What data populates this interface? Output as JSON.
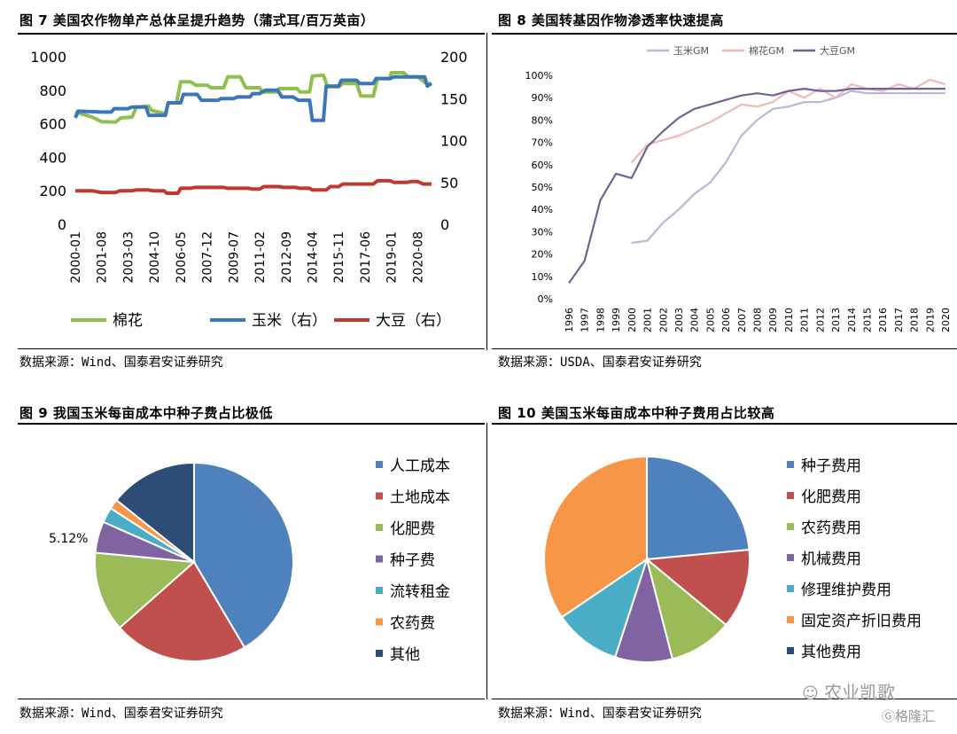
{
  "panels": {
    "fig7": {
      "title": "图 7 美国农作物单产总体呈提升趋势（蒲式耳/百万英亩）",
      "source": "数据来源：Wind、国泰君安证券研究"
    },
    "fig8": {
      "title": "图 8 美国转基因作物渗透率快速提高",
      "source": "数据来源：USDA、国泰君安证券研究"
    },
    "fig9": {
      "title": "图 9 我国玉米每亩成本中种子费占比极低",
      "source": "数据来源：Wind、国泰君安证券研究"
    },
    "fig10": {
      "title": "图 10 美国玉米每亩成本中种子费用占比较高",
      "source": "数据来源：Wind、国泰君安证券研究"
    }
  },
  "watermark": {
    "text1": "农业凯歌",
    "text2": "格隆汇"
  },
  "colors": {
    "green": "#8fbf4d",
    "blue": "#3d75bb",
    "red": "#c0392f",
    "gm_corn": "#b7b7d6",
    "gm_cotton": "#f2b8b8",
    "gm_soy": "#6e6494"
  },
  "chart_data": [
    {
      "type": "line",
      "x_ticks": [
        "2000-01",
        "2001-08",
        "2003-03",
        "2004-10",
        "2006-05",
        "2007-12",
        "2009-07",
        "2011-02",
        "2012-09",
        "2014-04",
        "2015-11",
        "2017-06",
        "2019-01",
        "2020-08"
      ],
      "x_range": [
        "2000-01",
        "2021-06"
      ],
      "y_left": {
        "ticks": [
          0,
          200,
          400,
          600,
          800,
          1000
        ],
        "lim": [
          0,
          1000
        ]
      },
      "y_right": {
        "ticks": [
          0,
          50,
          100,
          150,
          200
        ],
        "lim": [
          0,
          200
        ]
      },
      "legend_position": "bottom",
      "series": [
        {
          "name": "棉花",
          "axis": "left",
          "color": "#8fbf4d",
          "width": 4,
          "points": [
            [
              "2000-01",
              670
            ],
            [
              "2001-01",
              640
            ],
            [
              "2001-08",
              612
            ],
            [
              "2002-06",
              610
            ],
            [
              "2002-10",
              635
            ],
            [
              "2003-06",
              640
            ],
            [
              "2003-09",
              700
            ],
            [
              "2004-06",
              705
            ],
            [
              "2004-08",
              680
            ],
            [
              "2005-06",
              660
            ],
            [
              "2005-08",
              725
            ],
            [
              "2006-02",
              725
            ],
            [
              "2006-05",
              850
            ],
            [
              "2006-12",
              850
            ],
            [
              "2007-04",
              830
            ],
            [
              "2007-12",
              830
            ],
            [
              "2008-03",
              815
            ],
            [
              "2008-12",
              815
            ],
            [
              "2009-03",
              880
            ],
            [
              "2009-12",
              880
            ],
            [
              "2010-04",
              815
            ],
            [
              "2011-02",
              815
            ],
            [
              "2011-04",
              790
            ],
            [
              "2012-02",
              790
            ],
            [
              "2012-04",
              810
            ],
            [
              "2013-05",
              810
            ],
            [
              "2013-07",
              790
            ],
            [
              "2014-02",
              790
            ],
            [
              "2014-04",
              885
            ],
            [
              "2014-12",
              890
            ],
            [
              "2015-03",
              820
            ],
            [
              "2015-11",
              820
            ],
            [
              "2016-02",
              840
            ],
            [
              "2016-12",
              840
            ],
            [
              "2017-03",
              765
            ],
            [
              "2017-12",
              765
            ],
            [
              "2018-03",
              870
            ],
            [
              "2018-12",
              870
            ],
            [
              "2019-01",
              905
            ],
            [
              "2019-10",
              905
            ],
            [
              "2020-01",
              880
            ],
            [
              "2020-08",
              880
            ],
            [
              "2020-12",
              855
            ],
            [
              "2021-03",
              835
            ],
            [
              "2021-06",
              840
            ]
          ]
        },
        {
          "name": "玉米（右）",
          "axis": "right",
          "color": "#3d75bb",
          "width": 4,
          "points": [
            [
              "2000-01",
              127
            ],
            [
              "2000-03",
              135
            ],
            [
              "2001-08",
              134
            ],
            [
              "2002-03",
              134
            ],
            [
              "2002-05",
              138
            ],
            [
              "2003-03",
              138
            ],
            [
              "2003-06",
              140
            ],
            [
              "2004-04",
              140
            ],
            [
              "2004-06",
              130
            ],
            [
              "2005-06",
              130
            ],
            [
              "2005-08",
              145
            ],
            [
              "2006-05",
              145
            ],
            [
              "2006-07",
              155
            ],
            [
              "2007-05",
              155
            ],
            [
              "2007-08",
              148
            ],
            [
              "2008-08",
              148
            ],
            [
              "2008-10",
              150
            ],
            [
              "2009-07",
              150
            ],
            [
              "2009-10",
              152
            ],
            [
              "2010-07",
              152
            ],
            [
              "2010-09",
              156
            ],
            [
              "2011-02",
              156
            ],
            [
              "2011-06",
              160
            ],
            [
              "2012-03",
              160
            ],
            [
              "2012-06",
              152
            ],
            [
              "2013-02",
              152
            ],
            [
              "2013-06",
              148
            ],
            [
              "2014-02",
              148
            ],
            [
              "2014-04",
              124
            ],
            [
              "2014-12",
              124
            ],
            [
              "2015-02",
              165
            ],
            [
              "2015-11",
              165
            ],
            [
              "2016-01",
              172
            ],
            [
              "2016-12",
              172
            ],
            [
              "2017-02",
              168
            ],
            [
              "2017-12",
              168
            ],
            [
              "2018-02",
              174
            ],
            [
              "2018-12",
              174
            ],
            [
              "2019-03",
              176
            ],
            [
              "2020-08",
              176
            ],
            [
              "2021-01",
              176
            ],
            [
              "2021-03",
              165
            ],
            [
              "2021-06",
              168
            ]
          ]
        },
        {
          "name": "大豆（右）",
          "axis": "right",
          "color": "#c0392f",
          "width": 4,
          "points": [
            [
              "2000-01",
              40
            ],
            [
              "2001-01",
              40
            ],
            [
              "2001-08",
              38
            ],
            [
              "2002-06",
              38
            ],
            [
              "2002-09",
              40
            ],
            [
              "2003-06",
              40
            ],
            [
              "2003-09",
              41
            ],
            [
              "2004-06",
              41
            ],
            [
              "2004-09",
              40
            ],
            [
              "2005-05",
              40
            ],
            [
              "2005-07",
              37
            ],
            [
              "2006-03",
              37
            ],
            [
              "2006-05",
              43
            ],
            [
              "2006-12",
              43
            ],
            [
              "2007-03",
              44
            ],
            [
              "2008-12",
              44
            ],
            [
              "2009-03",
              43
            ],
            [
              "2010-06",
              43
            ],
            [
              "2010-09",
              42
            ],
            [
              "2011-02",
              42
            ],
            [
              "2011-05",
              45
            ],
            [
              "2012-04",
              45
            ],
            [
              "2012-07",
              44
            ],
            [
              "2013-04",
              44
            ],
            [
              "2013-07",
              43
            ],
            [
              "2014-02",
              43
            ],
            [
              "2014-04",
              41
            ],
            [
              "2015-02",
              41
            ],
            [
              "2015-05",
              45
            ],
            [
              "2015-11",
              45
            ],
            [
              "2016-02",
              48
            ],
            [
              "2017-12",
              48
            ],
            [
              "2018-03",
              52
            ],
            [
              "2018-12",
              52
            ],
            [
              "2019-03",
              50
            ],
            [
              "2019-12",
              50
            ],
            [
              "2020-03",
              51
            ],
            [
              "2020-08",
              51
            ],
            [
              "2020-12",
              48
            ],
            [
              "2021-06",
              48
            ]
          ]
        }
      ]
    },
    {
      "type": "line",
      "x": [
        "1996",
        "1997",
        "1998",
        "1999",
        "2000",
        "2001",
        "2002",
        "2003",
        "2004",
        "2005",
        "2006",
        "2007",
        "2008",
        "2009",
        "2010",
        "2011",
        "2012",
        "2013",
        "2014",
        "2015",
        "2016",
        "2017",
        "2018",
        "2019",
        "2020"
      ],
      "y_ticks": [
        "0%",
        "10%",
        "20%",
        "30%",
        "40%",
        "50%",
        "60%",
        "70%",
        "80%",
        "90%",
        "100%"
      ],
      "ylim": [
        0,
        100
      ],
      "legend_position": "top",
      "series": [
        {
          "name": "玉米GM",
          "color": "#b7b7d6",
          "values": [
            null,
            null,
            null,
            null,
            25,
            26,
            34,
            40,
            47,
            52,
            61,
            73,
            80,
            85,
            86,
            88,
            88,
            90,
            93,
            92,
            92,
            92,
            92,
            92,
            92
          ]
        },
        {
          "name": "棉花GM",
          "color": "#f2b8b8",
          "values": [
            null,
            null,
            null,
            null,
            61,
            69,
            71,
            73,
            76,
            79,
            83,
            87,
            86,
            88,
            93,
            90,
            94,
            90,
            96,
            94,
            93,
            96,
            94,
            98,
            96
          ]
        },
        {
          "name": "大豆GM",
          "color": "#6e6494",
          "values": [
            7,
            17,
            44,
            56,
            54,
            68,
            75,
            81,
            85,
            87,
            89,
            91,
            92,
            91,
            93,
            94,
            93,
            93,
            94,
            94,
            94,
            94,
            94,
            94,
            94
          ]
        }
      ]
    },
    {
      "type": "pie",
      "legend_position": "right",
      "slices": [
        {
          "label": "人工成本",
          "value": 41.5,
          "color": "#4f81bd"
        },
        {
          "label": "土地成本",
          "value": 22.0,
          "color": "#c0504d"
        },
        {
          "label": "化肥费",
          "value": 13.0,
          "color": "#9bbb59"
        },
        {
          "label": "种子费",
          "value": 5.12,
          "color": "#8064a2"
        },
        {
          "label": "流转租金",
          "value": 2.5,
          "color": "#4bacc6"
        },
        {
          "label": "农药费",
          "value": 1.6,
          "color": "#f79646"
        },
        {
          "label": "其他",
          "value": 14.28,
          "color": "#2c4d75"
        }
      ],
      "annotation": "5.12%"
    },
    {
      "type": "pie",
      "legend_position": "right",
      "slices": [
        {
          "label": "种子费用",
          "value": 23.5,
          "color": "#4f81bd"
        },
        {
          "label": "化肥费用",
          "value": 12.5,
          "color": "#c0504d"
        },
        {
          "label": "农药费用",
          "value": 10.0,
          "color": "#9bbb59"
        },
        {
          "label": "机械费用",
          "value": 9.0,
          "color": "#8064a2"
        },
        {
          "label": "修理维护费用",
          "value": 10.5,
          "color": "#4bacc6"
        },
        {
          "label": "固定资产折旧费用",
          "value": 34.5,
          "color": "#f79646"
        },
        {
          "label": "其他费用",
          "value": 0.0,
          "color": "#2c4d75"
        }
      ]
    }
  ]
}
